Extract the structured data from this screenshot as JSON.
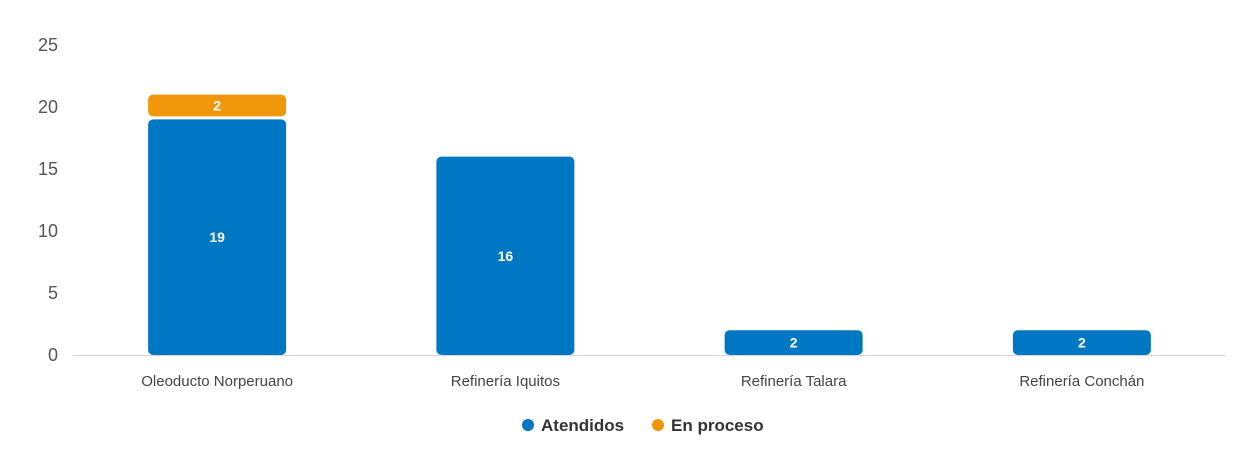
{
  "chart_data": {
    "type": "bar",
    "stacked": true,
    "categories": [
      "Oleoducto Norperuano",
      "Refinería Iquitos",
      "Refinería Talara",
      "Refinería Conchán"
    ],
    "series": [
      {
        "name": "Atendidos",
        "values": [
          19,
          16,
          2,
          2
        ],
        "color": "#0077C2"
      },
      {
        "name": "En proceso",
        "values": [
          2,
          0,
          0,
          0
        ],
        "color": "#F0960A"
      }
    ],
    "ylim": [
      0,
      25
    ],
    "yticks": [
      0,
      5,
      10,
      15,
      20,
      25
    ],
    "grid": false,
    "legend_position": "bottom-center",
    "data_labels": true
  }
}
